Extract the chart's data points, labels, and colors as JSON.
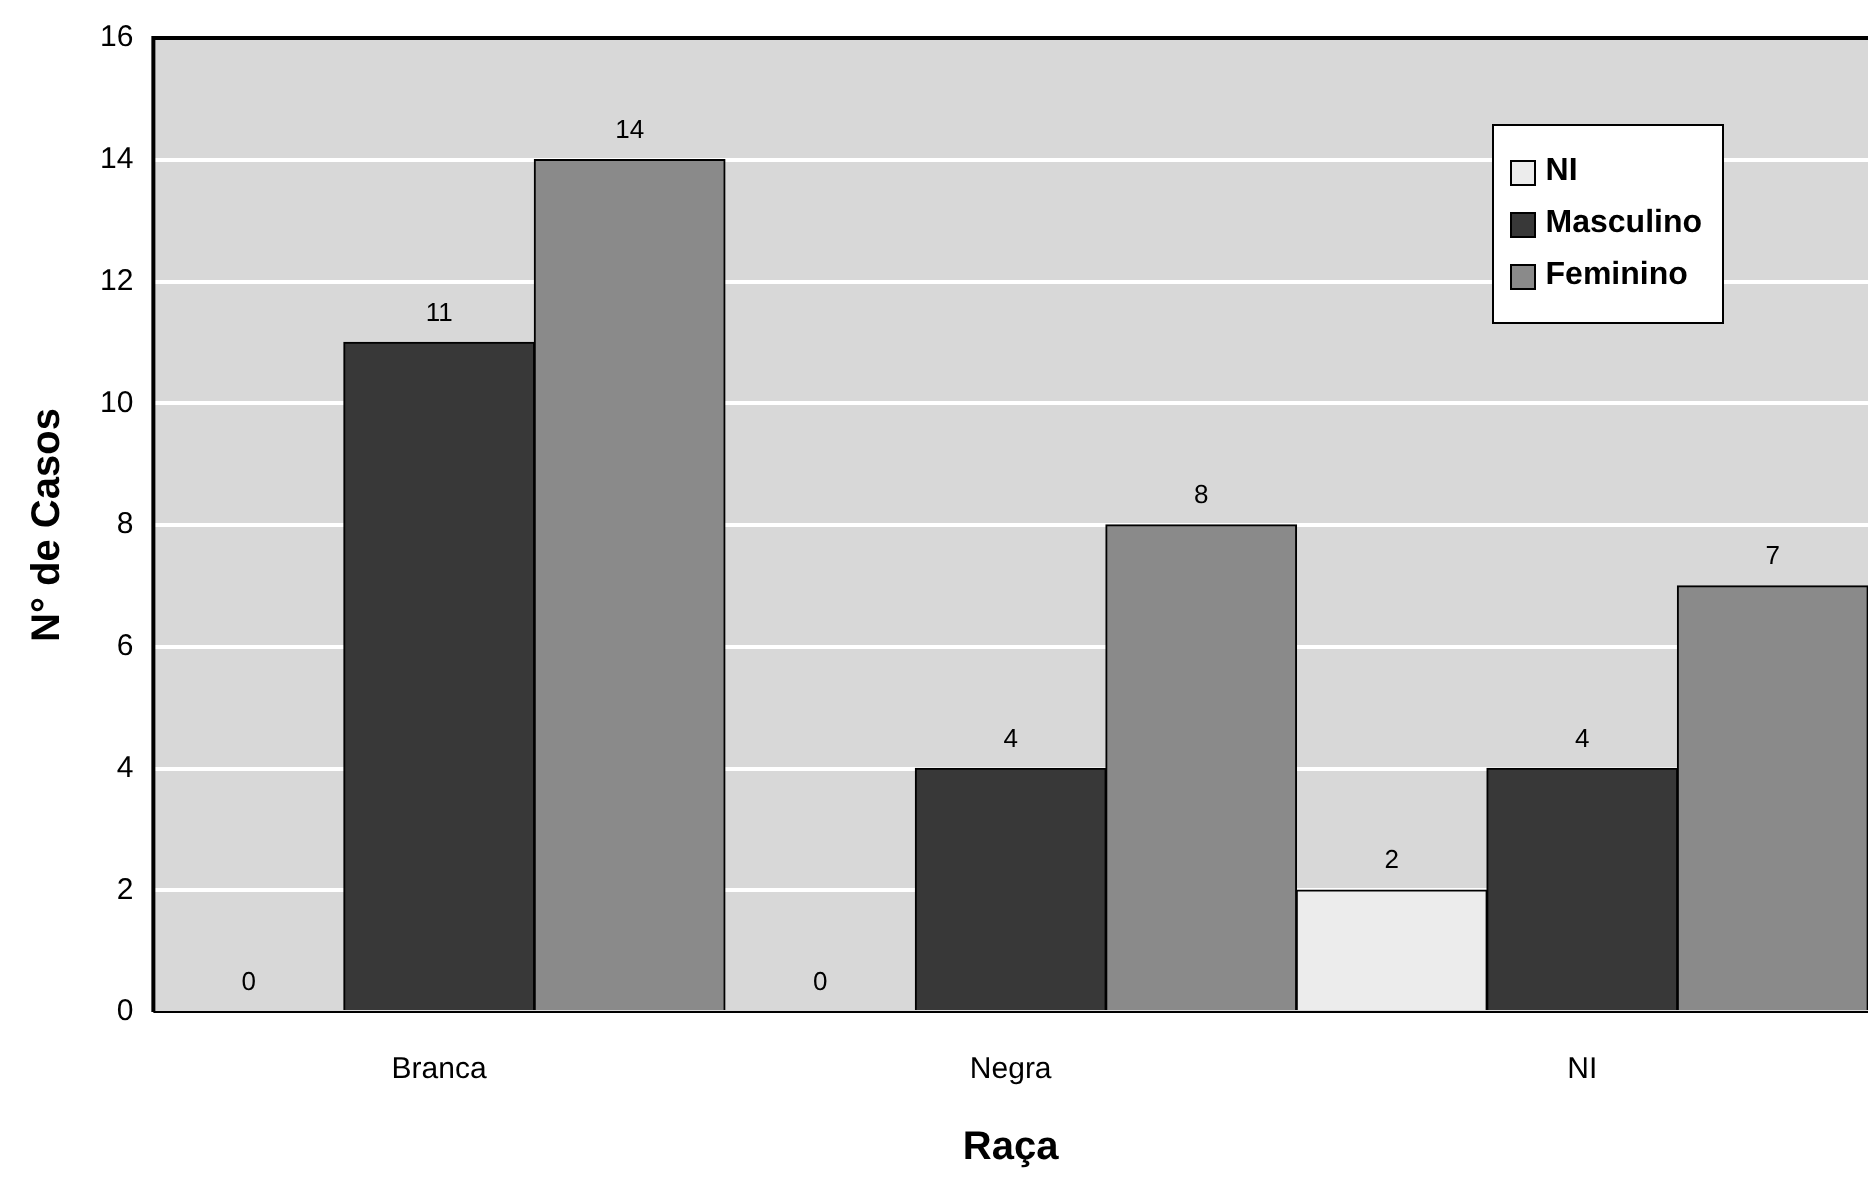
{
  "chart_data": {
    "type": "bar",
    "xlabel": "Raça",
    "ylabel": "N° de Casos",
    "categories": [
      "Branca",
      "Negra",
      "NI"
    ],
    "series": [
      {
        "name": "NI",
        "color": "#ececec",
        "values": [
          0,
          0,
          2
        ]
      },
      {
        "name": "Masculino",
        "color": "#383838",
        "values": [
          11,
          4,
          4
        ]
      },
      {
        "name": "Feminino",
        "color": "#8a8a8a",
        "values": [
          14,
          8,
          7
        ]
      }
    ],
    "ylim": [
      0,
      16
    ],
    "yticks": [
      0,
      2,
      4,
      6,
      8,
      10,
      12,
      14,
      16
    ],
    "grid": "y",
    "legend": "top right",
    "data_labels": true
  }
}
